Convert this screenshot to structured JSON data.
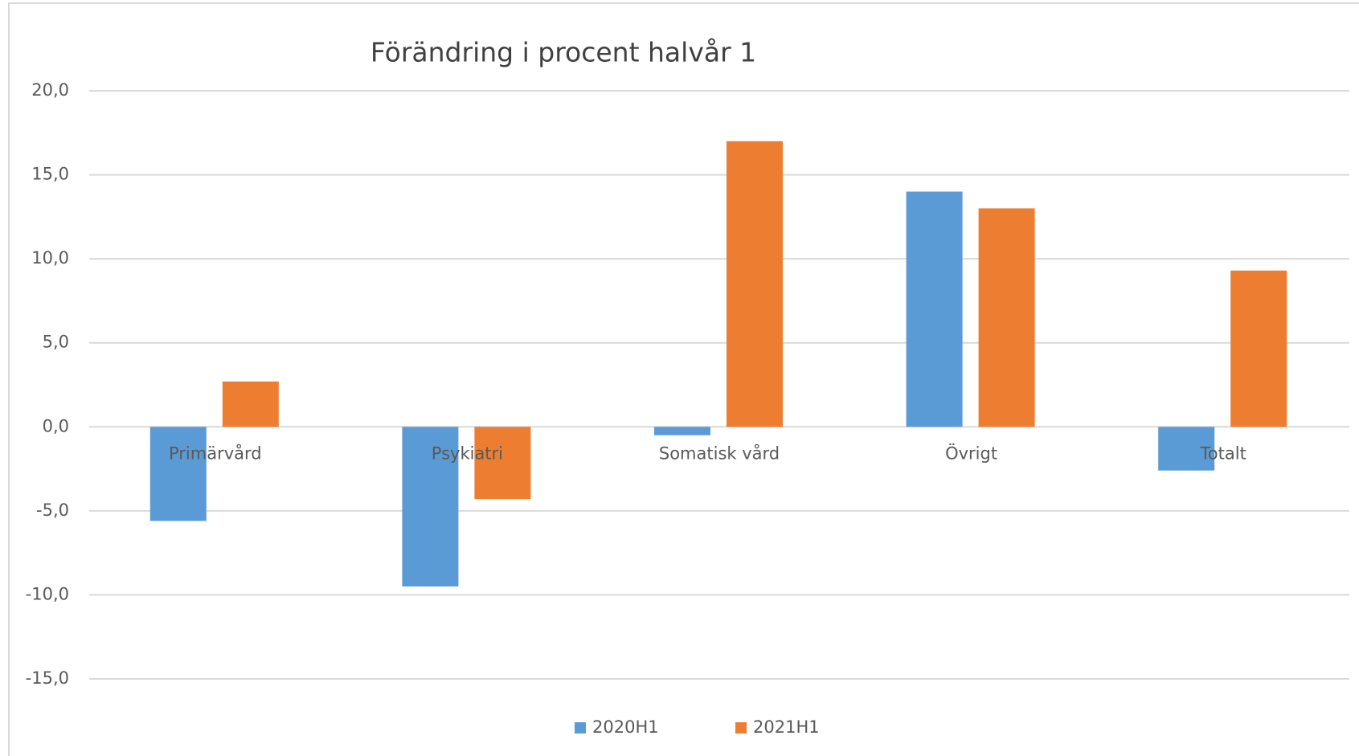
{
  "chart_data": {
    "type": "bar",
    "title": "Förändring i procent halvår 1",
    "categories": [
      "Primärvård",
      "Psykiatri",
      "Somatisk vård",
      "Övrigt",
      "Totalt"
    ],
    "series": [
      {
        "name": "2020H1",
        "color": "#5b9bd5",
        "values": [
          -5.6,
          -9.5,
          -0.5,
          14.0,
          -2.6
        ]
      },
      {
        "name": "2021H1",
        "color": "#ed7d31",
        "values": [
          2.7,
          -4.3,
          17.0,
          13.0,
          9.3
        ]
      }
    ],
    "ylim": [
      -15,
      20
    ],
    "yticks": [
      {
        "value": -15,
        "label": "-15,0"
      },
      {
        "value": -10,
        "label": "-10,0"
      },
      {
        "value": -5,
        "label": "-5,0"
      },
      {
        "value": 0,
        "label": "0,0"
      },
      {
        "value": 5,
        "label": "5,0"
      },
      {
        "value": 10,
        "label": "10,0"
      },
      {
        "value": 15,
        "label": "15,0"
      },
      {
        "value": 20,
        "label": "20,0"
      }
    ],
    "grid": true,
    "legend": "bottom"
  }
}
